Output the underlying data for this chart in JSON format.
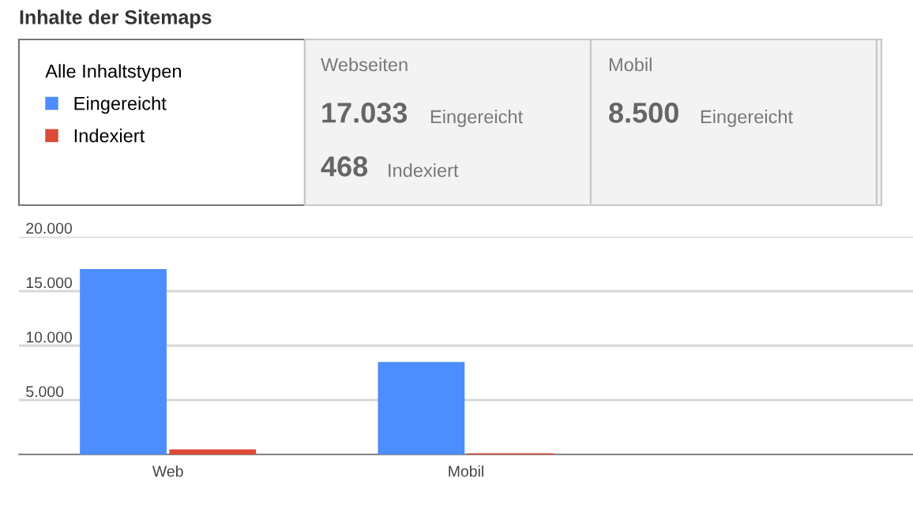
{
  "chart_data": {
    "type": "bar",
    "title": "Inhalte der Sitemaps",
    "legend_title": "Alle Inhaltstypen",
    "categories": [
      "Web",
      "Mobil",
      null
    ],
    "series": [
      {
        "name": "Eingereicht",
        "color": "#4d8dfd",
        "values": [
          17033,
          8500,
          null
        ]
      },
      {
        "name": "Indexiert",
        "color": "#dc4a38",
        "values": [
          468,
          100,
          null
        ]
      }
    ],
    "annotations": [
      "Webseiten",
      "17.033",
      "Eingereicht",
      "468",
      "Indexiert",
      "Mobil",
      "8.500",
      "Eingereicht"
    ],
    "ylim": [
      0,
      20000
    ],
    "yticks": [
      {
        "value": 0,
        "label": null
      },
      {
        "value": 5000,
        "label": "5.000"
      },
      {
        "value": 10000,
        "label": "10.000"
      },
      {
        "value": 15000,
        "label": "15.000"
      },
      {
        "value": 20000,
        "label": "20.000"
      }
    ],
    "grid": "y",
    "legend": "top left"
  }
}
